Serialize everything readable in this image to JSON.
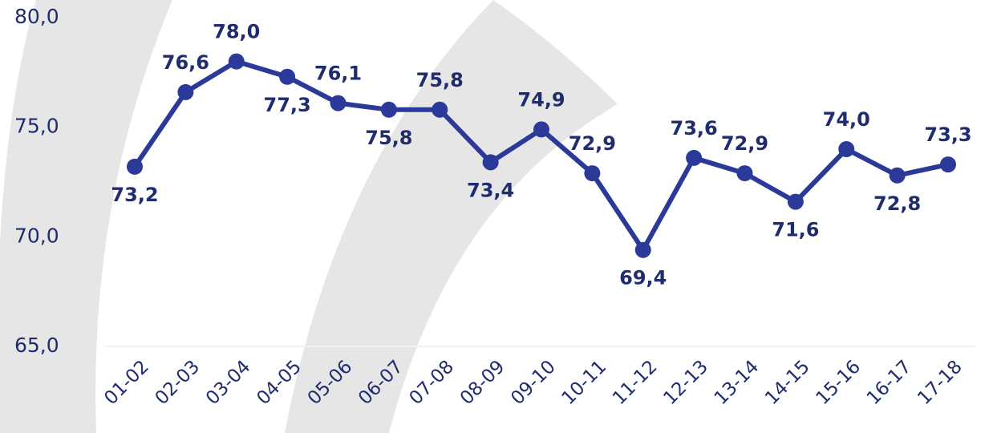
{
  "chart_data": {
    "type": "line",
    "categories": [
      "01-02",
      "02-03",
      "03-04",
      "04-05",
      "05-06",
      "06-07",
      "07-08",
      "08-09",
      "09-10",
      "10-11",
      "11-12",
      "12-13",
      "13-14",
      "14-15",
      "15-16",
      "16-17",
      "17-18"
    ],
    "series": [
      {
        "color": "#2b3a98",
        "values": [
          73.2,
          76.6,
          78.0,
          77.3,
          76.1,
          75.8,
          75.8,
          73.4,
          74.9,
          72.9,
          69.4,
          73.6,
          72.9,
          71.6,
          74.0,
          72.8,
          73.3
        ],
        "value_labels": [
          "73,2",
          "76,6",
          "78,0",
          "77,3",
          "76,1",
          "75,8",
          "75,8",
          "73,4",
          "74,9",
          "72,9",
          "69,4",
          "73,6",
          "72,9",
          "71,6",
          "74,0",
          "72,8",
          "73,3"
        ]
      }
    ],
    "ylim": [
      65,
      80
    ],
    "yticks": [
      {
        "value": 65,
        "label": "65,0"
      },
      {
        "value": 70,
        "label": "70,0"
      },
      {
        "value": 75,
        "label": "75,0"
      },
      {
        "value": 80,
        "label": "80,0"
      }
    ],
    "grid": false
  }
}
